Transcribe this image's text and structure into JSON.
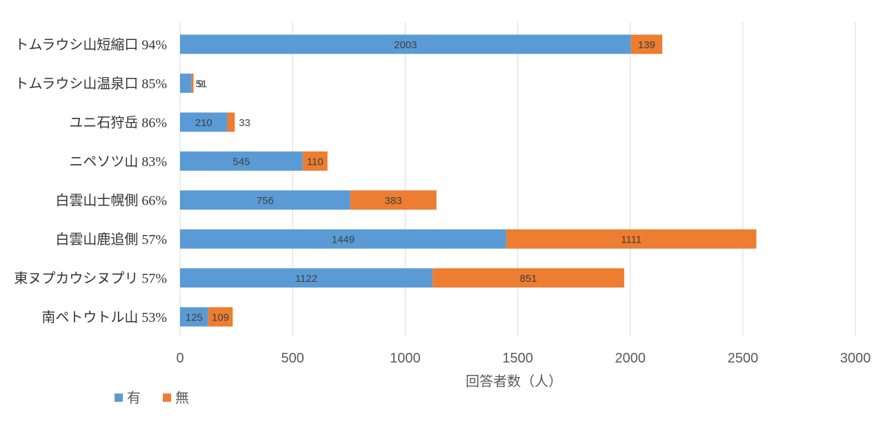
{
  "chart_data": {
    "type": "bar",
    "orientation": "horizontal",
    "stacked": true,
    "categories": [
      "トムラウシ山短縮口 94%",
      "トムラウシ山温泉口 85%",
      "ユニ石狩岳 86%",
      "ニペソツ山 83%",
      "白雲山士幌側 66%",
      "白雲山鹿追側 57%",
      "東ヌプカウシヌプリ 57%",
      "南ペトウトル山 53%"
    ],
    "series": [
      {
        "name": "有",
        "color": "#5B9BD5",
        "values": [
          2003,
          51,
          210,
          545,
          756,
          1449,
          1122,
          125
        ]
      },
      {
        "name": "無",
        "color": "#ED7D31",
        "values": [
          139,
          9,
          33,
          110,
          383,
          1111,
          851,
          109
        ]
      }
    ],
    "xlabel": "回答者数（人）",
    "ylabel": "",
    "xlim": [
      0,
      3000
    ],
    "xticks": [
      "0",
      "500",
      "1000",
      "1500",
      "2000",
      "2500",
      "3000"
    ],
    "grid": "vertical",
    "legend_position": "bottom-left"
  }
}
